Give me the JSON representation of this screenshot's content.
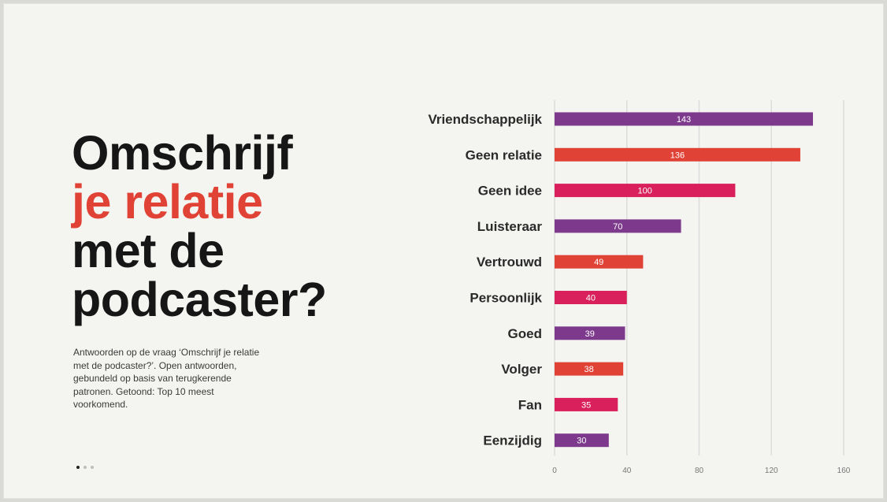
{
  "slide": {
    "title_lines": [
      "Omschrijf",
      "je relatie",
      "met de",
      "podcaster?"
    ],
    "description": "Antwoorden op de vraag ‘Omschrijf je relatie met de podcaster?’. Open antwoorden, gebundeld op basis van terugkerende patronen. Getoond: Top 10 meest voorkomend.",
    "pagination": {
      "total": 3,
      "active": 1
    }
  },
  "colors": {
    "background": "#f4f4f1",
    "title_text": "#161616",
    "title_accent": "#e04236",
    "purple": "#7d3a8c",
    "red": "#e04236",
    "pink": "#d91f5c",
    "gridline": "#dcdcdc"
  },
  "chart_data": {
    "type": "bar",
    "orientation": "horizontal",
    "categories": [
      "Vriendschappelijk",
      "Geen relatie",
      "Geen idee",
      "Luisteraar",
      "Vertrouwd",
      "Persoonlijk",
      "Goed",
      "Volger",
      "Fan",
      "Eenzijdig"
    ],
    "values": [
      143,
      136,
      100,
      70,
      49,
      40,
      39,
      38,
      35,
      30
    ],
    "bar_colors": [
      "#7d3a8c",
      "#e04236",
      "#d91f5c",
      "#7d3a8c",
      "#e04236",
      "#d91f5c",
      "#7d3a8c",
      "#e04236",
      "#d91f5c",
      "#7d3a8c"
    ],
    "xlim": [
      0,
      160
    ],
    "xticks": [
      0,
      40,
      80,
      120,
      160
    ],
    "grid": true,
    "data_labels": true,
    "legend": "none"
  }
}
